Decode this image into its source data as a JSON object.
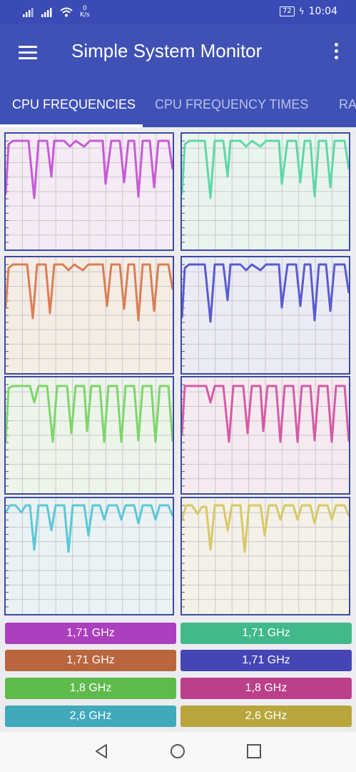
{
  "status_bar": {
    "net_speed_value": "0",
    "net_speed_unit": "K/s",
    "battery": "72",
    "time": "10:04"
  },
  "app_bar": {
    "title": "Simple System Monitor"
  },
  "tabs": [
    {
      "label": "CPU FREQUENCIES",
      "active": true
    },
    {
      "label": "CPU FREQUENCY TIMES",
      "active": false
    },
    {
      "label": "RA",
      "active": false
    }
  ],
  "cores": [
    {
      "frequency": "1,71 GHz",
      "line_color": "#c85ad6",
      "bg_color": "#f4ebf5",
      "label_color": "#ac3fbd"
    },
    {
      "frequency": "1,71 GHz",
      "line_color": "#5dd8a8",
      "bg_color": "#eaf4ef",
      "label_color": "#41b98a"
    },
    {
      "frequency": "1,71 GHz",
      "line_color": "#d97e55",
      "bg_color": "#f5ece4",
      "label_color": "#b9653f"
    },
    {
      "frequency": "1,71 GHz",
      "line_color": "#5a5ad0",
      "bg_color": "#ebebf5",
      "label_color": "#4545b6"
    },
    {
      "frequency": "1,8 GHz",
      "line_color": "#7dd66a",
      "bg_color": "#edf4ea",
      "label_color": "#5fba4c"
    },
    {
      "frequency": "1,8 GHz",
      "line_color": "#d65aa6",
      "bg_color": "#f5eaf0",
      "label_color": "#bb3f89"
    },
    {
      "frequency": "2,6 GHz",
      "line_color": "#5ac8d8",
      "bg_color": "#eaf2f4",
      "label_color": "#40a9ba"
    },
    {
      "frequency": "2,6 GHz",
      "line_color": "#d8c868",
      "bg_color": "#f4f2e8",
      "label_color": "#b8a63d"
    }
  ],
  "nav_bar": {
    "back": "back-icon",
    "home": "home-icon",
    "recents": "recents-icon"
  }
}
